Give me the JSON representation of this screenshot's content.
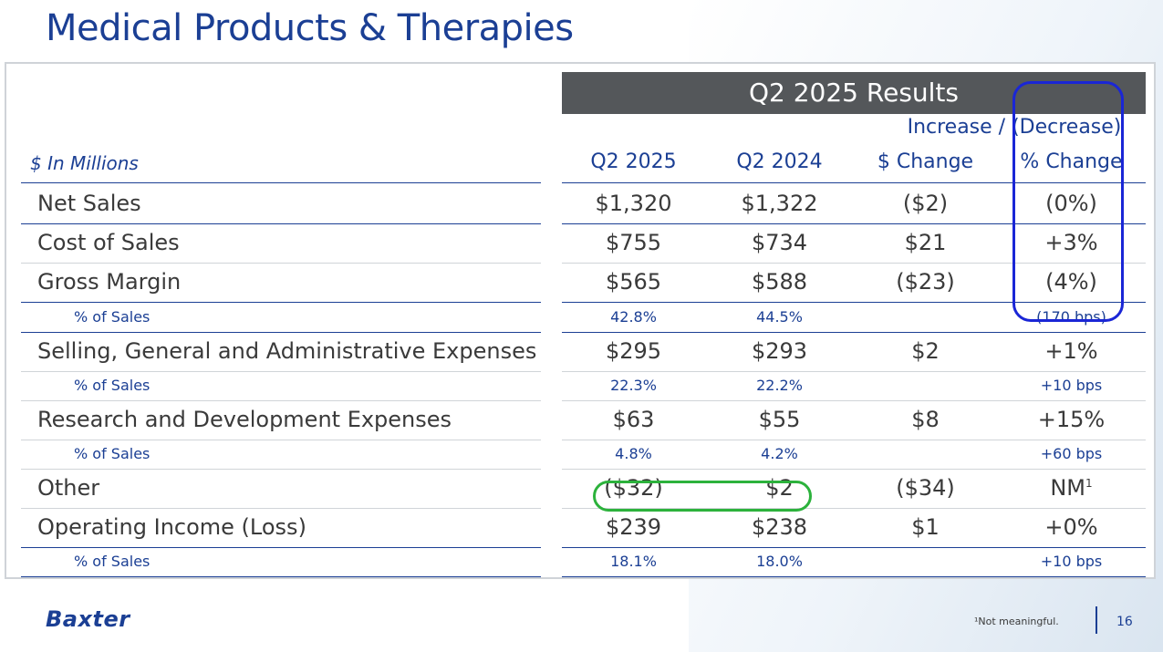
{
  "page": {
    "title": "Medical Products & Therapies",
    "page_number": "16"
  },
  "table": {
    "results_header": "Q2 2025 Results",
    "increase_header": "Increase / (Decrease)",
    "units_label": "$ In Millions",
    "columns": [
      "Q2 2025",
      "Q2 2024",
      "$ Change",
      "% Change"
    ],
    "rows": [
      {
        "label": "Net Sales",
        "q2_2025": "$1,320",
        "q2_2024": "$1,322",
        "dollar_change": "($2)",
        "pct_change": "(0%)"
      },
      {
        "label": "Cost of Sales",
        "q2_2025": "$755",
        "q2_2024": "$734",
        "dollar_change": "$21",
        "pct_change": "+3%"
      },
      {
        "label": "Gross Margin",
        "q2_2025": "$565",
        "q2_2024": "$588",
        "dollar_change": "($23)",
        "pct_change": "(4%)"
      },
      {
        "label": "% of Sales",
        "q2_2025": "42.8%",
        "q2_2024": "44.5%",
        "dollar_change": "",
        "pct_change": "(170 bps)"
      },
      {
        "label": "Selling, General and Administrative Expenses",
        "q2_2025": "$295",
        "q2_2024": "$293",
        "dollar_change": "$2",
        "pct_change": "+1%"
      },
      {
        "label": "% of Sales",
        "q2_2025": "22.3%",
        "q2_2024": "22.2%",
        "dollar_change": "",
        "pct_change": "+10 bps"
      },
      {
        "label": "Research and Development Expenses",
        "q2_2025": "$63",
        "q2_2024": "$55",
        "dollar_change": "$8",
        "pct_change": "+15%"
      },
      {
        "label": "% of Sales",
        "q2_2025": "4.8%",
        "q2_2024": "4.2%",
        "dollar_change": "",
        "pct_change": "+60 bps"
      },
      {
        "label": "Other",
        "q2_2025": "($32)",
        "q2_2024": "$2",
        "dollar_change": "($34)",
        "pct_change": "NM",
        "pct_sup": "1"
      },
      {
        "label": "Operating Income (Loss)",
        "q2_2025": "$239",
        "q2_2024": "$238",
        "dollar_change": "$1",
        "pct_change": "+0%"
      },
      {
        "label": "% of Sales",
        "q2_2025": "18.1%",
        "q2_2024": "18.0%",
        "dollar_change": "",
        "pct_change": "+10 bps"
      }
    ]
  },
  "footer": {
    "logo_text": "Baxter",
    "footnote": "¹Not meaningful."
  },
  "colors": {
    "brand_blue": "#1b3f94",
    "header_gray": "#54575a",
    "annotation_blue": "#1a26d6",
    "annotation_green": "#2cb23c"
  }
}
